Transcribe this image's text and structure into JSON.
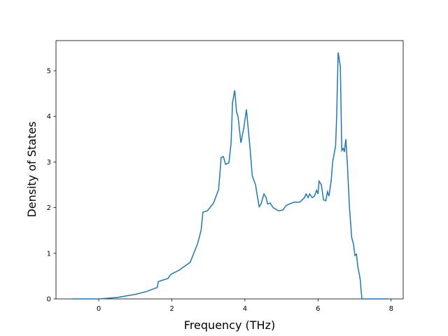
{
  "chart_data": {
    "type": "line",
    "x_label": "Frequency (THz)",
    "y_label": "Density of States",
    "x": [
      -0.73,
      0,
      0.5,
      1.0,
      1.3,
      1.6,
      1.63,
      1.9,
      1.95,
      2.0,
      2.2,
      2.32,
      2.5,
      2.6,
      2.7,
      2.8,
      2.85,
      2.97,
      3.14,
      3.28,
      3.35,
      3.41,
      3.47,
      3.56,
      3.62,
      3.66,
      3.72,
      3.77,
      3.81,
      3.89,
      3.97,
      4.04,
      4.14,
      4.2,
      4.29,
      4.33,
      4.39,
      4.44,
      4.52,
      4.58,
      4.62,
      4.69,
      4.77,
      4.92,
      5.04,
      5.13,
      5.34,
      5.5,
      5.63,
      5.67,
      5.73,
      5.77,
      5.84,
      5.9,
      5.96,
      6.0,
      6.03,
      6.09,
      6.15,
      6.21,
      6.26,
      6.3,
      6.36,
      6.4,
      6.48,
      6.51,
      6.55,
      6.61,
      6.65,
      6.69,
      6.72,
      6.76,
      6.8,
      6.86,
      6.92,
      6.97,
      7.01,
      7.05,
      7.09,
      7.15,
      7.2,
      7.93
    ],
    "series": [
      {
        "color": "#1f77b4",
        "values": [
          0,
          0,
          0.03,
          0.1,
          0.16,
          0.25,
          0.38,
          0.45,
          0.52,
          0.55,
          0.63,
          0.7,
          0.8,
          1.0,
          1.2,
          1.5,
          1.9,
          1.93,
          2.1,
          2.4,
          3.1,
          3.12,
          2.95,
          2.98,
          3.4,
          4.3,
          4.57,
          4.1,
          4.0,
          3.42,
          3.75,
          4.15,
          3.3,
          2.7,
          2.5,
          2.3,
          2.02,
          2.08,
          2.3,
          2.22,
          2.08,
          2.1,
          2.0,
          1.93,
          1.95,
          2.05,
          2.12,
          2.12,
          2.22,
          2.3,
          2.22,
          2.3,
          2.22,
          2.25,
          2.38,
          2.3,
          2.58,
          2.5,
          2.17,
          2.15,
          2.35,
          2.25,
          2.6,
          3.0,
          3.35,
          4.0,
          5.4,
          5.1,
          3.25,
          3.3,
          3.22,
          3.5,
          3.0,
          2.0,
          1.35,
          1.2,
          0.95,
          0.98,
          0.7,
          0.45,
          0,
          0
        ]
      }
    ],
    "xlim": [
      -1.17,
      8.33
    ],
    "ylim": [
      0,
      5.66
    ],
    "xticks": [
      0,
      2,
      4,
      6,
      8
    ],
    "yticks": [
      0,
      1,
      2,
      3,
      4,
      5
    ]
  }
}
